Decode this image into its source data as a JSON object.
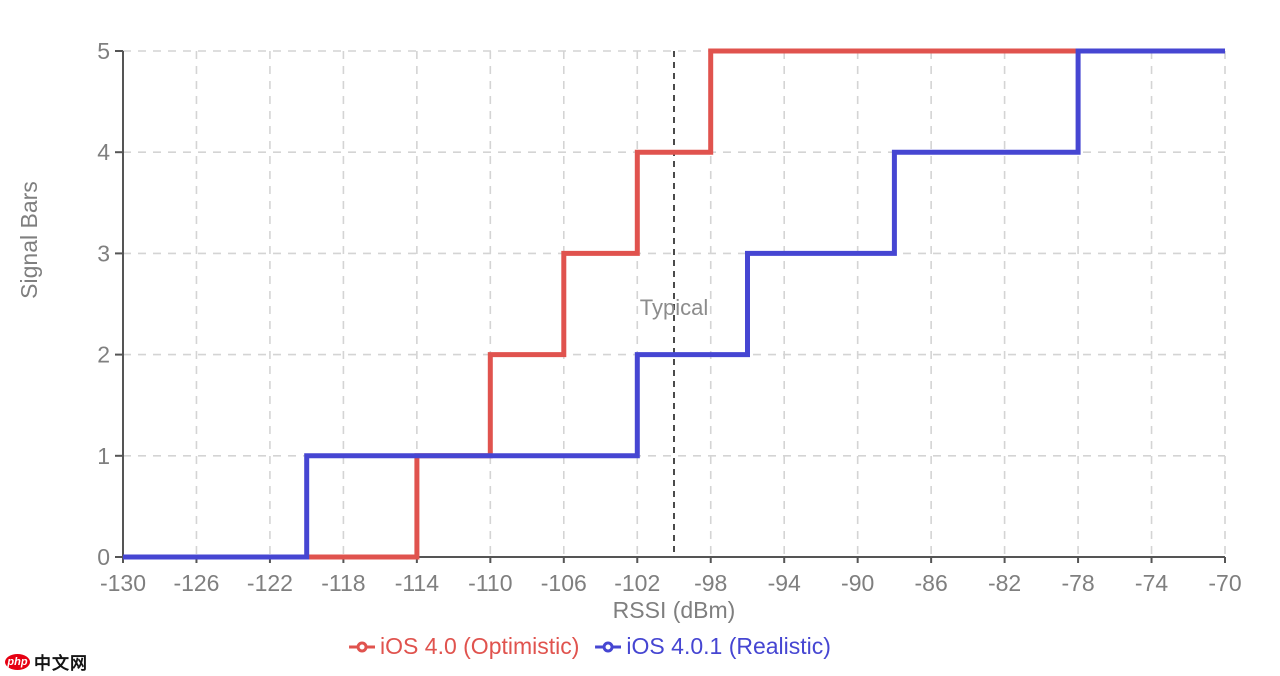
{
  "chart_data": {
    "type": "line",
    "subtype": "step",
    "title": "",
    "xlabel": "RSSI (dBm)",
    "ylabel": "Signal Bars",
    "xlim": [
      -130,
      -70
    ],
    "ylim": [
      0,
      5
    ],
    "x_ticks": [
      -130,
      -126,
      -122,
      -118,
      -114,
      -110,
      -106,
      -102,
      -98,
      -94,
      -90,
      -86,
      -82,
      -78,
      -74,
      -70
    ],
    "y_ticks": [
      0,
      1,
      2,
      3,
      4,
      5
    ],
    "grid": "dashed",
    "legend_position": "bottom",
    "annotation": {
      "label": "Typical",
      "x": -100,
      "label_y": 2.47
    },
    "series": [
      {
        "name": "iOS 4.0 (Optimistic)",
        "color": "#e0534e",
        "points": [
          [
            -130,
            0
          ],
          [
            -114,
            0
          ],
          [
            -114,
            1
          ],
          [
            -110,
            1
          ],
          [
            -110,
            2
          ],
          [
            -106,
            2
          ],
          [
            -106,
            3
          ],
          [
            -102,
            3
          ],
          [
            -102,
            4
          ],
          [
            -98,
            4
          ],
          [
            -98,
            5
          ],
          [
            -70,
            5
          ]
        ]
      },
      {
        "name": "iOS 4.0.1 (Realistic)",
        "color": "#4646d2",
        "points": [
          [
            -130,
            0
          ],
          [
            -120,
            0
          ],
          [
            -120,
            1
          ],
          [
            -102,
            1
          ],
          [
            -102,
            2
          ],
          [
            -96,
            2
          ],
          [
            -96,
            3
          ],
          [
            -88,
            3
          ],
          [
            -88,
            4
          ],
          [
            -78,
            4
          ],
          [
            -78,
            5
          ],
          [
            -70,
            5
          ]
        ]
      }
    ]
  },
  "colors": {
    "background": "#ffffff",
    "grid": "#d4d4d4",
    "axis": "#555555",
    "tick_text": "#7f7f7f",
    "axis_title_text": "#7f7f7f",
    "annotation_line": "#4a4a4a",
    "annotation_text": "#8c8c8c"
  },
  "watermark": {
    "badge": "php",
    "text": "中文网"
  }
}
